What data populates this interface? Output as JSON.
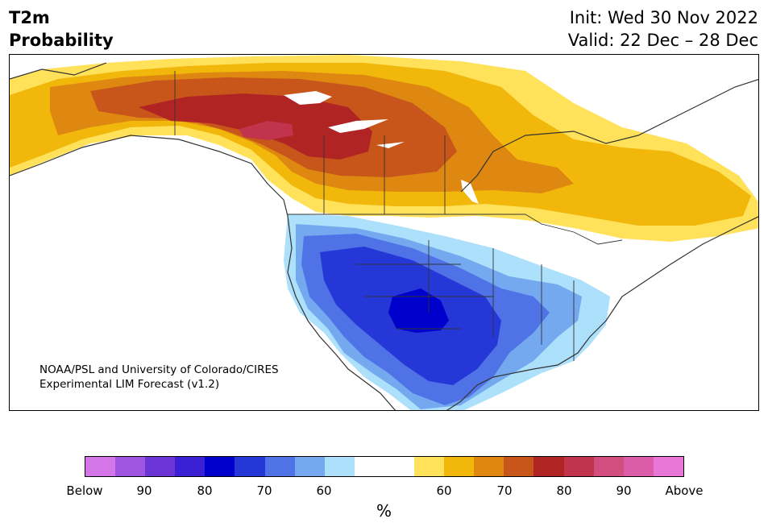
{
  "header": {
    "title_line1": "T2m",
    "title_line2": "Probability",
    "init": "Init: Wed 30 Nov 2022",
    "valid": "Valid: 22 Dec – 28 Dec"
  },
  "credit": {
    "line1": "NOAA/PSL and University of Colorado/CIRES",
    "line2": "Experimental LIM Forecast (v1.2)"
  },
  "legend": {
    "unit": "%",
    "tick_labels": [
      "Below",
      "90",
      "80",
      "70",
      "60",
      "60",
      "70",
      "80",
      "90",
      "Above"
    ],
    "colors": [
      "#d475e8",
      "#9f55e0",
      "#6b35d6",
      "#3a1fd4",
      "#0000cc",
      "#2637d8",
      "#4f72e6",
      "#74a9f0",
      "#ade0fb",
      "#ffffff",
      "#ffffff",
      "#ffe15a",
      "#f1b80b",
      "#de8812",
      "#c8561a",
      "#b12424",
      "#c2344b",
      "#d24e7f",
      "#db5daa",
      "#e877d8"
    ]
  },
  "map": {
    "regions": [
      {
        "name": "canada-60pct-warm",
        "color": "#ffe15a"
      },
      {
        "name": "canada-warm-tier1",
        "color": "#f1b80b"
      },
      {
        "name": "canada-warm-tier2",
        "color": "#de8812"
      },
      {
        "name": "canada-warm-tier3",
        "color": "#c8561a"
      },
      {
        "name": "canada-warm-tier4",
        "color": "#b12424"
      },
      {
        "name": "canada-warm-core",
        "color": "#c2344b"
      },
      {
        "name": "us-cold-tier1",
        "color": "#ade0fb"
      },
      {
        "name": "us-cold-tier2",
        "color": "#74a9f0"
      },
      {
        "name": "us-cold-tier3",
        "color": "#4f72e6"
      },
      {
        "name": "us-cold-tier4",
        "color": "#2637d8"
      },
      {
        "name": "us-cold-core",
        "color": "#0000cc"
      }
    ]
  }
}
